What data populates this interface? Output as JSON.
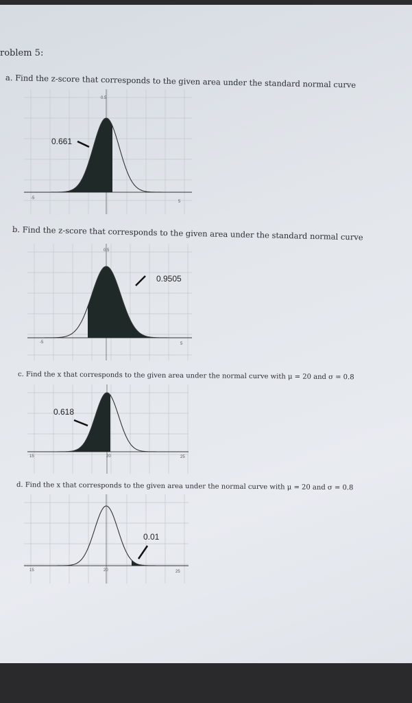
{
  "heading": "roblem 5:",
  "problems": [
    {
      "text": "a. Find the z-score that corresponds to the given area under the standard normal curve",
      "area_label": "0.661",
      "ticks": {
        "left": "-5",
        "right": "5",
        "top": "0.5"
      },
      "shading": "left"
    },
    {
      "text": "b. Find the z-score that corresponds to the given area under the standard normal curve",
      "area_label": "0.9505",
      "ticks": {
        "left": "-5",
        "right": "5",
        "top": "0.5"
      },
      "shading": "middle"
    },
    {
      "text": "c. Find the x that corresponds to the given area under the normal curve with μ = 20 and σ = 0.8",
      "area_label": "0.618",
      "ticks": {
        "left": "15",
        "mid": "20",
        "right": "25"
      },
      "shading": "left"
    },
    {
      "text": "d. Find the x that corresponds to the given area under the normal curve with μ = 20 and σ = 0.8",
      "area_label": "0.01",
      "ticks": {
        "left": "15",
        "mid": "20",
        "right": "25"
      },
      "shading": "right"
    }
  ],
  "colors": {
    "fill": "#1f2a28",
    "curve": "#333333",
    "grid": "#c4c9cf"
  }
}
